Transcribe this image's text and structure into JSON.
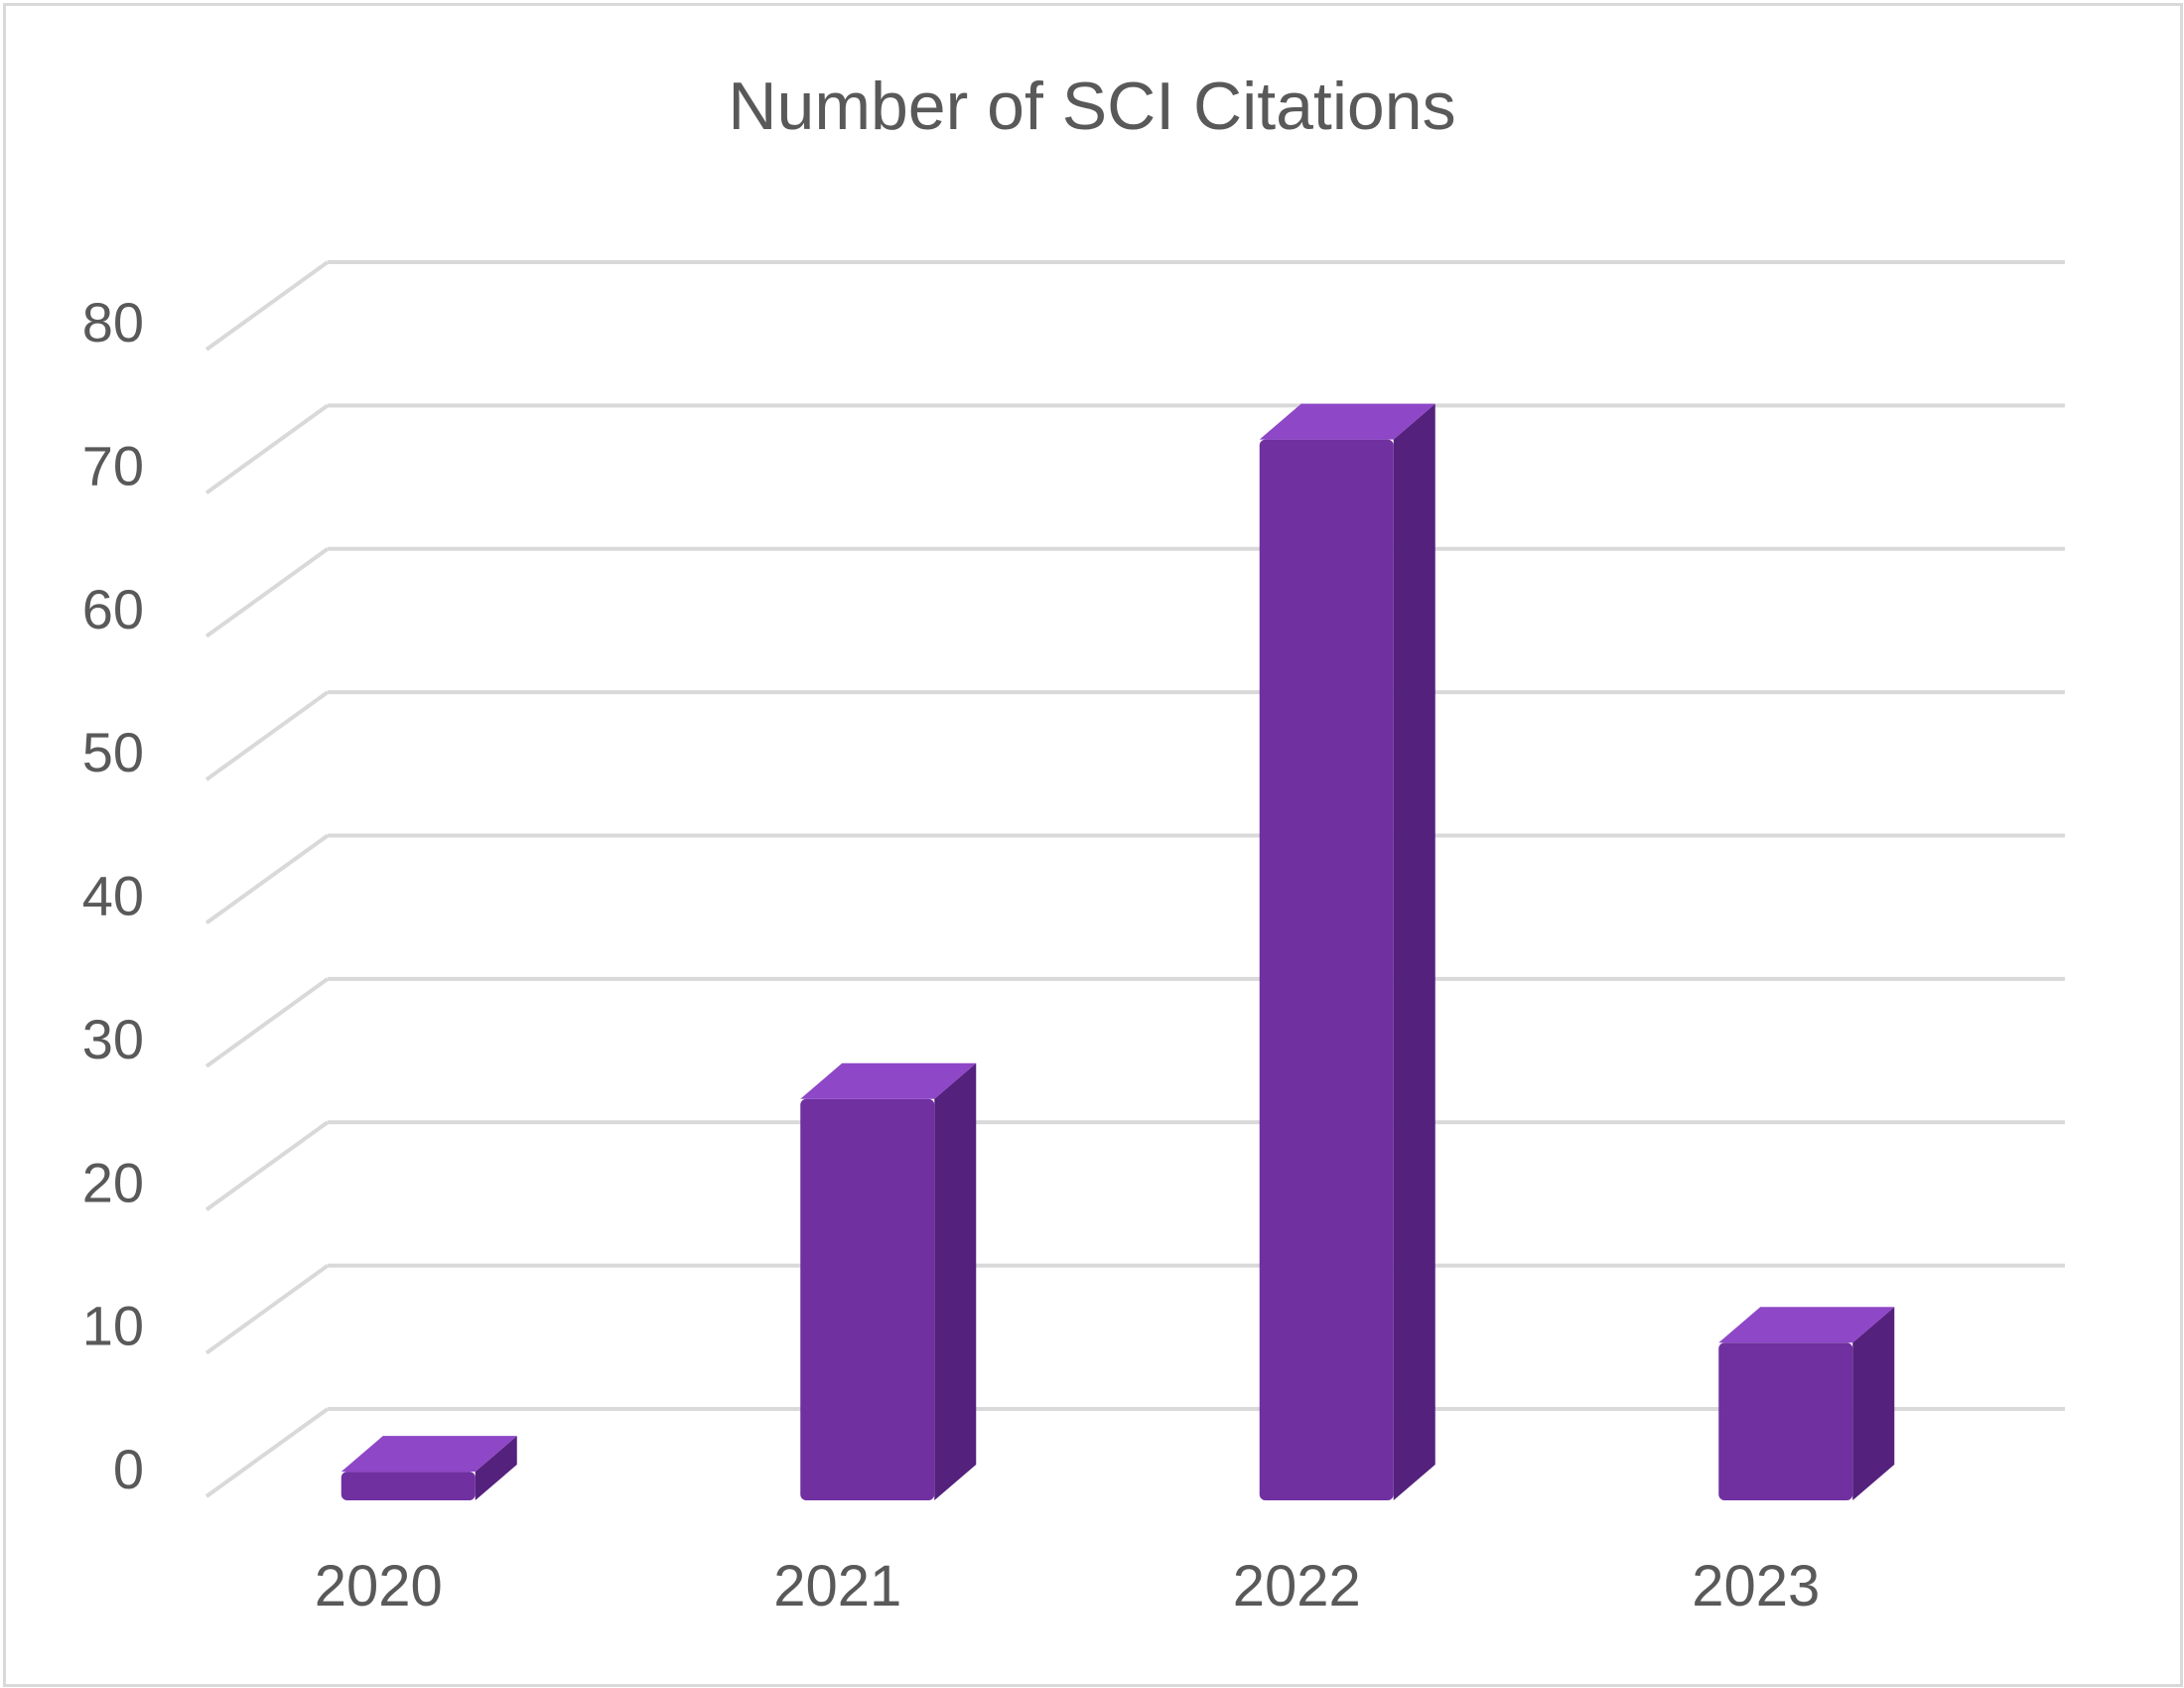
{
  "chart_data": {
    "type": "bar",
    "title": "Number of SCI Citations",
    "categories": [
      "2020",
      "2021",
      "2022",
      "2023"
    ],
    "series": [
      {
        "values": [
          2,
          28,
          74,
          11
        ]
      }
    ],
    "ylim": [
      0,
      80
    ],
    "yticks": [
      0,
      10,
      20,
      30,
      40,
      50,
      60,
      70,
      80
    ],
    "grid": true,
    "three_d": true,
    "bar_color": "#7030a0",
    "bar_top_color": "#8e47c7",
    "bar_side_color": "#54217d",
    "grid_color": "#d9d9d9",
    "text_color": "#595959"
  }
}
